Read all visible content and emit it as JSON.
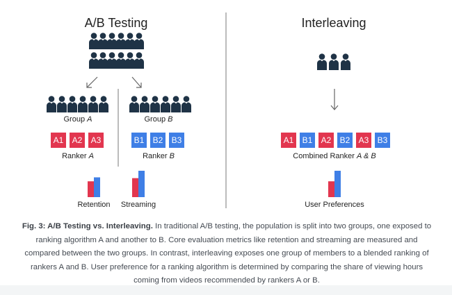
{
  "colors": {
    "person": "#1f3346",
    "a_box": "#e2364f",
    "b_box": "#3f7fe6",
    "text": "#222222",
    "divider": "#777777",
    "arrow": "#666666"
  },
  "icons": {
    "person": "person-icon",
    "arrow": "arrow-down-icon"
  },
  "ab_testing": {
    "title": "A/B Testing",
    "group_a": {
      "label_prefix": "Group ",
      "label_letter": "A",
      "ranker_prefix": "Ranker ",
      "ranker_letter": "A",
      "items": [
        "A1",
        "A2",
        "A3"
      ]
    },
    "group_b": {
      "label_prefix": "Group ",
      "label_letter": "B",
      "ranker_prefix": "Ranker ",
      "ranker_letter": "B",
      "items": [
        "B1",
        "B2",
        "B3"
      ]
    },
    "metrics": [
      {
        "label": "Retention",
        "a": 0.6,
        "b": 0.75
      },
      {
        "label": "Streaming",
        "a": 0.72,
        "b": 1.0
      }
    ]
  },
  "interleaving": {
    "title": "Interleaving",
    "items": [
      "A1",
      "B1",
      "A2",
      "B2",
      "A3",
      "B3"
    ],
    "ranker_prefix": "Combined Ranker ",
    "ranker_suffix": "A & B",
    "metric": {
      "label": "User Preferences",
      "a": 0.6,
      "b": 1.0
    }
  },
  "caption": {
    "bold": "Fig. 3: A/B Testing vs. Interleaving.",
    "text": " In traditional A/B testing, the population is split into two groups, one exposed to ranking algorithm A and another to B. Core evaluation metrics like retention and streaming are measured and compared between the two groups. In contrast, interleaving exposes one group of members to a blended ranking of rankers A and B. User preference for a ranking algorithm is determined by comparing the share of viewing hours coming from videos recommended by rankers A or B."
  }
}
